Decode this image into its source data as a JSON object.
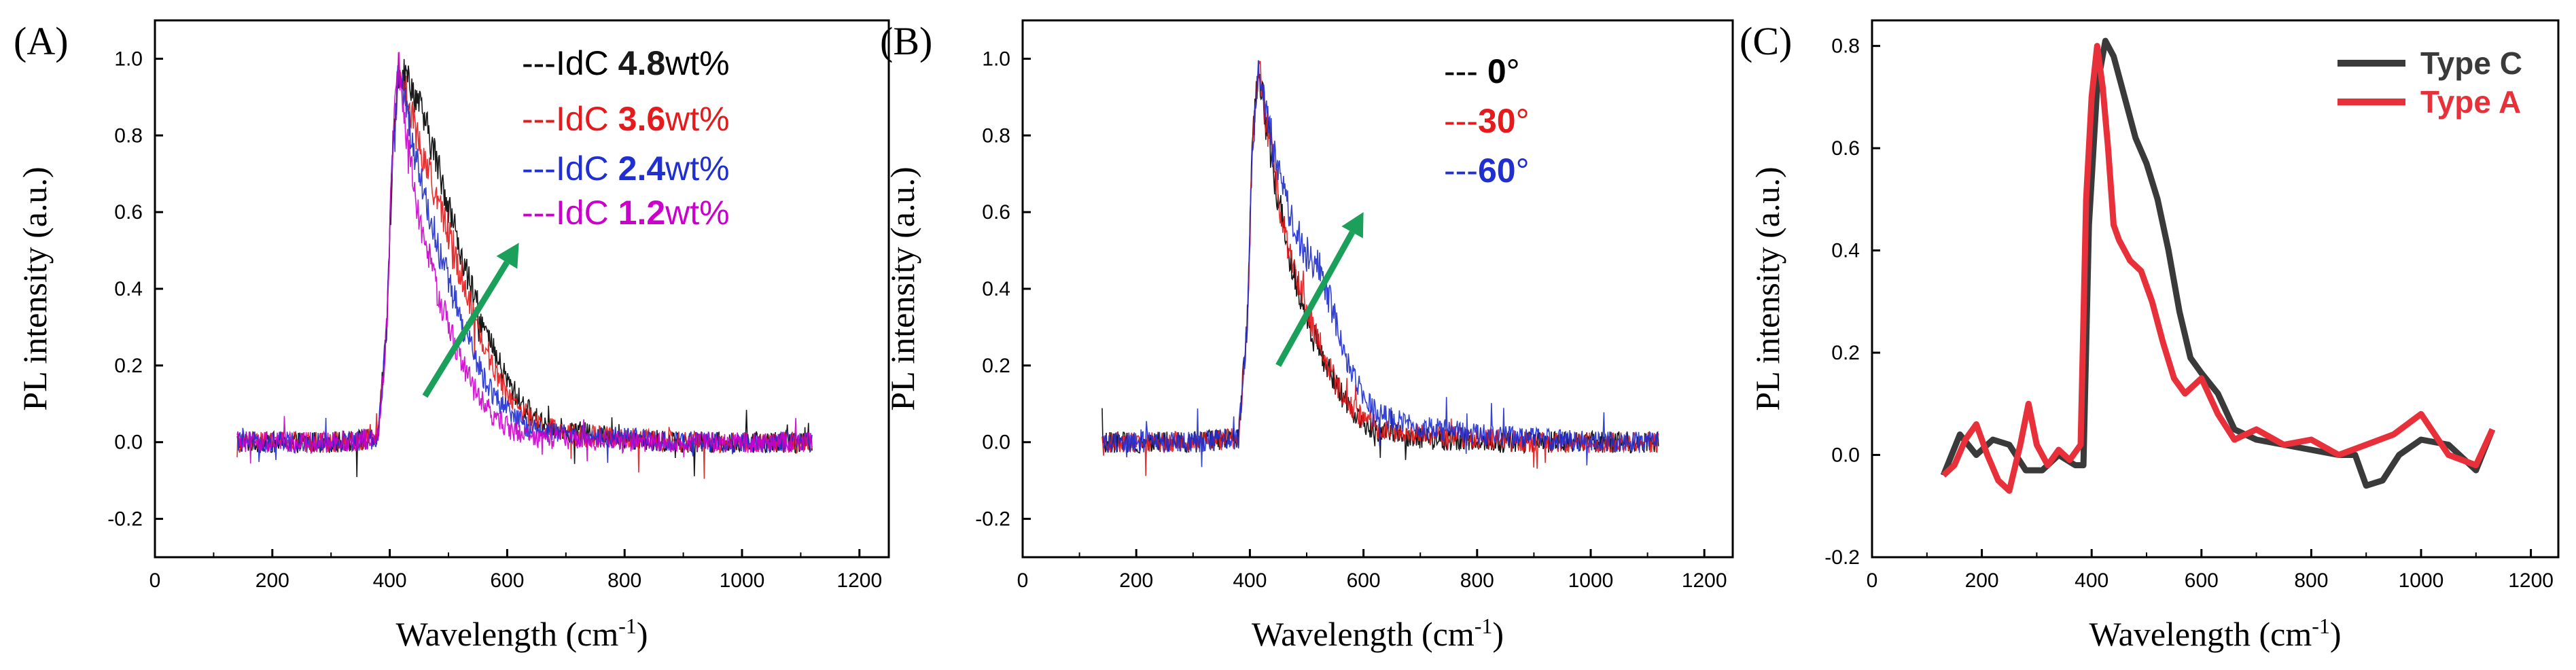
{
  "chart_data": [
    {
      "id": "A",
      "panel_label": "(A)",
      "type": "line",
      "xlabel": "Wavelength (cm",
      "xlabel_sup": "-1",
      "xlabel_end": ")",
      "ylabel": "PL intensity (a.u.)",
      "xlim": [
        0,
        1250
      ],
      "ylim": [
        -0.3,
        1.1
      ],
      "xticks": [
        "0",
        "200",
        "400",
        "600",
        "800",
        "1000",
        "1200"
      ],
      "yticks": [
        "-0.2",
        "0.0",
        "0.2",
        "0.4",
        "0.6",
        "0.8",
        "1.0"
      ],
      "legend_position": "top-right",
      "annotation": "green arrow indicating increasing trend",
      "series": [
        {
          "name": "IdC 4.8wt%",
          "legend_prefix": "---IdC ",
          "legend_value": "4.8",
          "legend_suffix": "wt%",
          "color": "#000000",
          "value_color": "#1a1a1a",
          "x": [
            140,
            200,
            300,
            380,
            395,
            405,
            415,
            430,
            450,
            475,
            500,
            525,
            550,
            575,
            600,
            625,
            650,
            700,
            800,
            900,
            1000,
            1120
          ],
          "y": [
            0.0,
            0.0,
            0.0,
            0.01,
            0.3,
            0.75,
            0.96,
            0.95,
            0.88,
            0.76,
            0.62,
            0.47,
            0.34,
            0.24,
            0.16,
            0.1,
            0.06,
            0.03,
            0.01,
            0.0,
            0.0,
            0.0
          ]
        },
        {
          "name": "IdC 3.6wt%",
          "legend_prefix": "---IdC ",
          "legend_value": "3.6",
          "legend_suffix": "wt%",
          "color": "#e41a1c",
          "value_color": "#e41a1c",
          "x": [
            140,
            200,
            300,
            380,
            395,
            405,
            415,
            430,
            450,
            475,
            500,
            525,
            550,
            575,
            600,
            625,
            650,
            700,
            800,
            900,
            1000,
            1120
          ],
          "y": [
            0.0,
            0.0,
            0.0,
            0.01,
            0.3,
            0.75,
            0.97,
            0.9,
            0.78,
            0.66,
            0.55,
            0.42,
            0.3,
            0.2,
            0.13,
            0.08,
            0.05,
            0.02,
            0.01,
            0.0,
            0.0,
            0.0
          ]
        },
        {
          "name": "IdC 2.4wt%",
          "legend_prefix": "---IdC ",
          "legend_value": "2.4",
          "legend_suffix": "wt%",
          "color": "#1f2fd0",
          "value_color": "#1f2fd0",
          "x": [
            140,
            200,
            300,
            380,
            395,
            405,
            415,
            430,
            450,
            475,
            500,
            525,
            550,
            575,
            600,
            625,
            650,
            700,
            800,
            900,
            1000,
            1120
          ],
          "y": [
            0.0,
            0.0,
            0.0,
            0.01,
            0.3,
            0.76,
            0.98,
            0.85,
            0.7,
            0.55,
            0.42,
            0.3,
            0.2,
            0.13,
            0.08,
            0.05,
            0.03,
            0.02,
            0.01,
            0.0,
            0.0,
            0.0
          ]
        },
        {
          "name": "IdC 1.2wt%",
          "legend_prefix": "---IdC ",
          "legend_value": "1.2",
          "legend_suffix": "wt%",
          "color": "#cc00cc",
          "value_color": "#cc00cc",
          "x": [
            140,
            200,
            300,
            380,
            395,
            405,
            415,
            430,
            450,
            475,
            500,
            525,
            550,
            575,
            600,
            625,
            650,
            700,
            800,
            900,
            1000,
            1120
          ],
          "y": [
            0.0,
            0.0,
            0.0,
            0.01,
            0.3,
            0.78,
            0.99,
            0.78,
            0.58,
            0.43,
            0.3,
            0.2,
            0.12,
            0.07,
            0.04,
            0.02,
            0.01,
            0.01,
            0.0,
            0.0,
            0.0,
            0.0
          ]
        }
      ],
      "arrow": {
        "from": [
          460,
          0.12
        ],
        "to": [
          620,
          0.52
        ],
        "color": "#1aa05a"
      }
    },
    {
      "id": "B",
      "panel_label": "(B)",
      "type": "line",
      "xlabel": "Wavelength (cm",
      "xlabel_sup": "-1",
      "xlabel_end": ")",
      "ylabel": "PL intensity (a.u.)",
      "xlim": [
        0,
        1250
      ],
      "ylim": [
        -0.3,
        1.1
      ],
      "xticks": [
        "0",
        "200",
        "400",
        "600",
        "800",
        "1000",
        "1200"
      ],
      "yticks": [
        "-0.2",
        "0.0",
        "0.2",
        "0.4",
        "0.6",
        "0.8",
        "1.0"
      ],
      "legend_position": "top-right",
      "annotation": "green arrow indicating increasing trend",
      "series": [
        {
          "name": "0°",
          "legend_prefix": "--- ",
          "legend_value": "0",
          "legend_suffix": "°",
          "color": "#000000",
          "value_color": "#000000",
          "x": [
            140,
            200,
            300,
            380,
            395,
            405,
            415,
            430,
            450,
            475,
            500,
            525,
            550,
            575,
            600,
            625,
            650,
            700,
            800,
            900,
            1000,
            1120
          ],
          "y": [
            0.0,
            0.0,
            0.0,
            0.01,
            0.3,
            0.78,
            0.98,
            0.82,
            0.63,
            0.46,
            0.33,
            0.23,
            0.15,
            0.09,
            0.05,
            0.03,
            0.02,
            0.01,
            0.0,
            0.0,
            0.0,
            0.0
          ]
        },
        {
          "name": "30°",
          "legend_prefix": "---",
          "legend_value": "30",
          "legend_suffix": "°",
          "color": "#e41a1c",
          "value_color": "#e41a1c",
          "x": [
            140,
            200,
            300,
            380,
            395,
            405,
            415,
            430,
            450,
            475,
            500,
            525,
            550,
            575,
            600,
            625,
            650,
            700,
            800,
            900,
            1000,
            1120
          ],
          "y": [
            0.0,
            0.0,
            0.0,
            0.01,
            0.3,
            0.78,
            0.98,
            0.83,
            0.64,
            0.47,
            0.35,
            0.25,
            0.16,
            0.1,
            0.06,
            0.04,
            0.03,
            0.02,
            0.01,
            0.0,
            0.0,
            0.0
          ]
        },
        {
          "name": "60°",
          "legend_prefix": "---",
          "legend_value": "60",
          "legend_suffix": "°",
          "color": "#1f2fd0",
          "value_color": "#1f2fd0",
          "x": [
            140,
            200,
            300,
            380,
            395,
            405,
            415,
            430,
            450,
            475,
            500,
            525,
            550,
            575,
            600,
            625,
            650,
            700,
            800,
            900,
            1000,
            1120
          ],
          "y": [
            0.0,
            0.0,
            0.0,
            0.01,
            0.3,
            0.78,
            0.98,
            0.86,
            0.7,
            0.57,
            0.49,
            0.45,
            0.32,
            0.2,
            0.12,
            0.08,
            0.06,
            0.04,
            0.02,
            0.01,
            0.0,
            0.0
          ]
        }
      ],
      "arrow": {
        "from": [
          450,
          0.2
        ],
        "to": [
          600,
          0.6
        ],
        "color": "#1aa05a"
      }
    },
    {
      "id": "C",
      "panel_label": "(C)",
      "type": "line",
      "xlabel": "Wavelength (cm",
      "xlabel_sup": "-1",
      "xlabel_end": ")",
      "ylabel": "PL intensity (a.u.)",
      "xlim": [
        0,
        1250
      ],
      "ylim": [
        -0.2,
        0.85
      ],
      "xticks": [
        "0",
        "200",
        "400",
        "600",
        "800",
        "1000",
        "1200"
      ],
      "yticks": [
        "-0.2",
        "0.0",
        "0.2",
        "0.4",
        "0.6",
        "0.8"
      ],
      "legend_position": "top-right",
      "series": [
        {
          "name": "Type C",
          "color": "#3a3a3a",
          "x": [
            130,
            160,
            190,
            220,
            250,
            280,
            310,
            340,
            370,
            385,
            395,
            410,
            425,
            440,
            460,
            480,
            500,
            520,
            540,
            560,
            580,
            600,
            630,
            660,
            700,
            750,
            800,
            850,
            880,
            900,
            930,
            960,
            1000,
            1050,
            1100,
            1130
          ],
          "y": [
            -0.04,
            0.04,
            0.0,
            0.03,
            0.02,
            -0.03,
            -0.03,
            0.0,
            -0.02,
            -0.02,
            0.45,
            0.72,
            0.81,
            0.78,
            0.7,
            0.62,
            0.57,
            0.5,
            0.4,
            0.28,
            0.19,
            0.16,
            0.12,
            0.05,
            0.03,
            0.02,
            0.01,
            0.0,
            0.0,
            -0.06,
            -0.05,
            0.0,
            0.03,
            0.02,
            -0.03,
            0.05
          ]
        },
        {
          "name": "Type A",
          "color": "#e8303a",
          "x": [
            130,
            150,
            170,
            190,
            210,
            230,
            250,
            270,
            285,
            300,
            320,
            340,
            360,
            380,
            390,
            400,
            410,
            420,
            430,
            440,
            450,
            470,
            490,
            510,
            530,
            550,
            570,
            600,
            630,
            660,
            700,
            750,
            800,
            850,
            900,
            950,
            1000,
            1050,
            1100,
            1130
          ],
          "y": [
            -0.04,
            -0.02,
            0.03,
            0.06,
            0.0,
            -0.05,
            -0.07,
            0.02,
            0.1,
            0.02,
            -0.02,
            0.01,
            -0.01,
            0.02,
            0.5,
            0.7,
            0.8,
            0.72,
            0.6,
            0.45,
            0.42,
            0.38,
            0.36,
            0.3,
            0.22,
            0.15,
            0.12,
            0.15,
            0.08,
            0.03,
            0.05,
            0.02,
            0.03,
            0.0,
            0.02,
            0.04,
            0.08,
            0.0,
            -0.02,
            0.05
          ]
        }
      ]
    }
  ]
}
